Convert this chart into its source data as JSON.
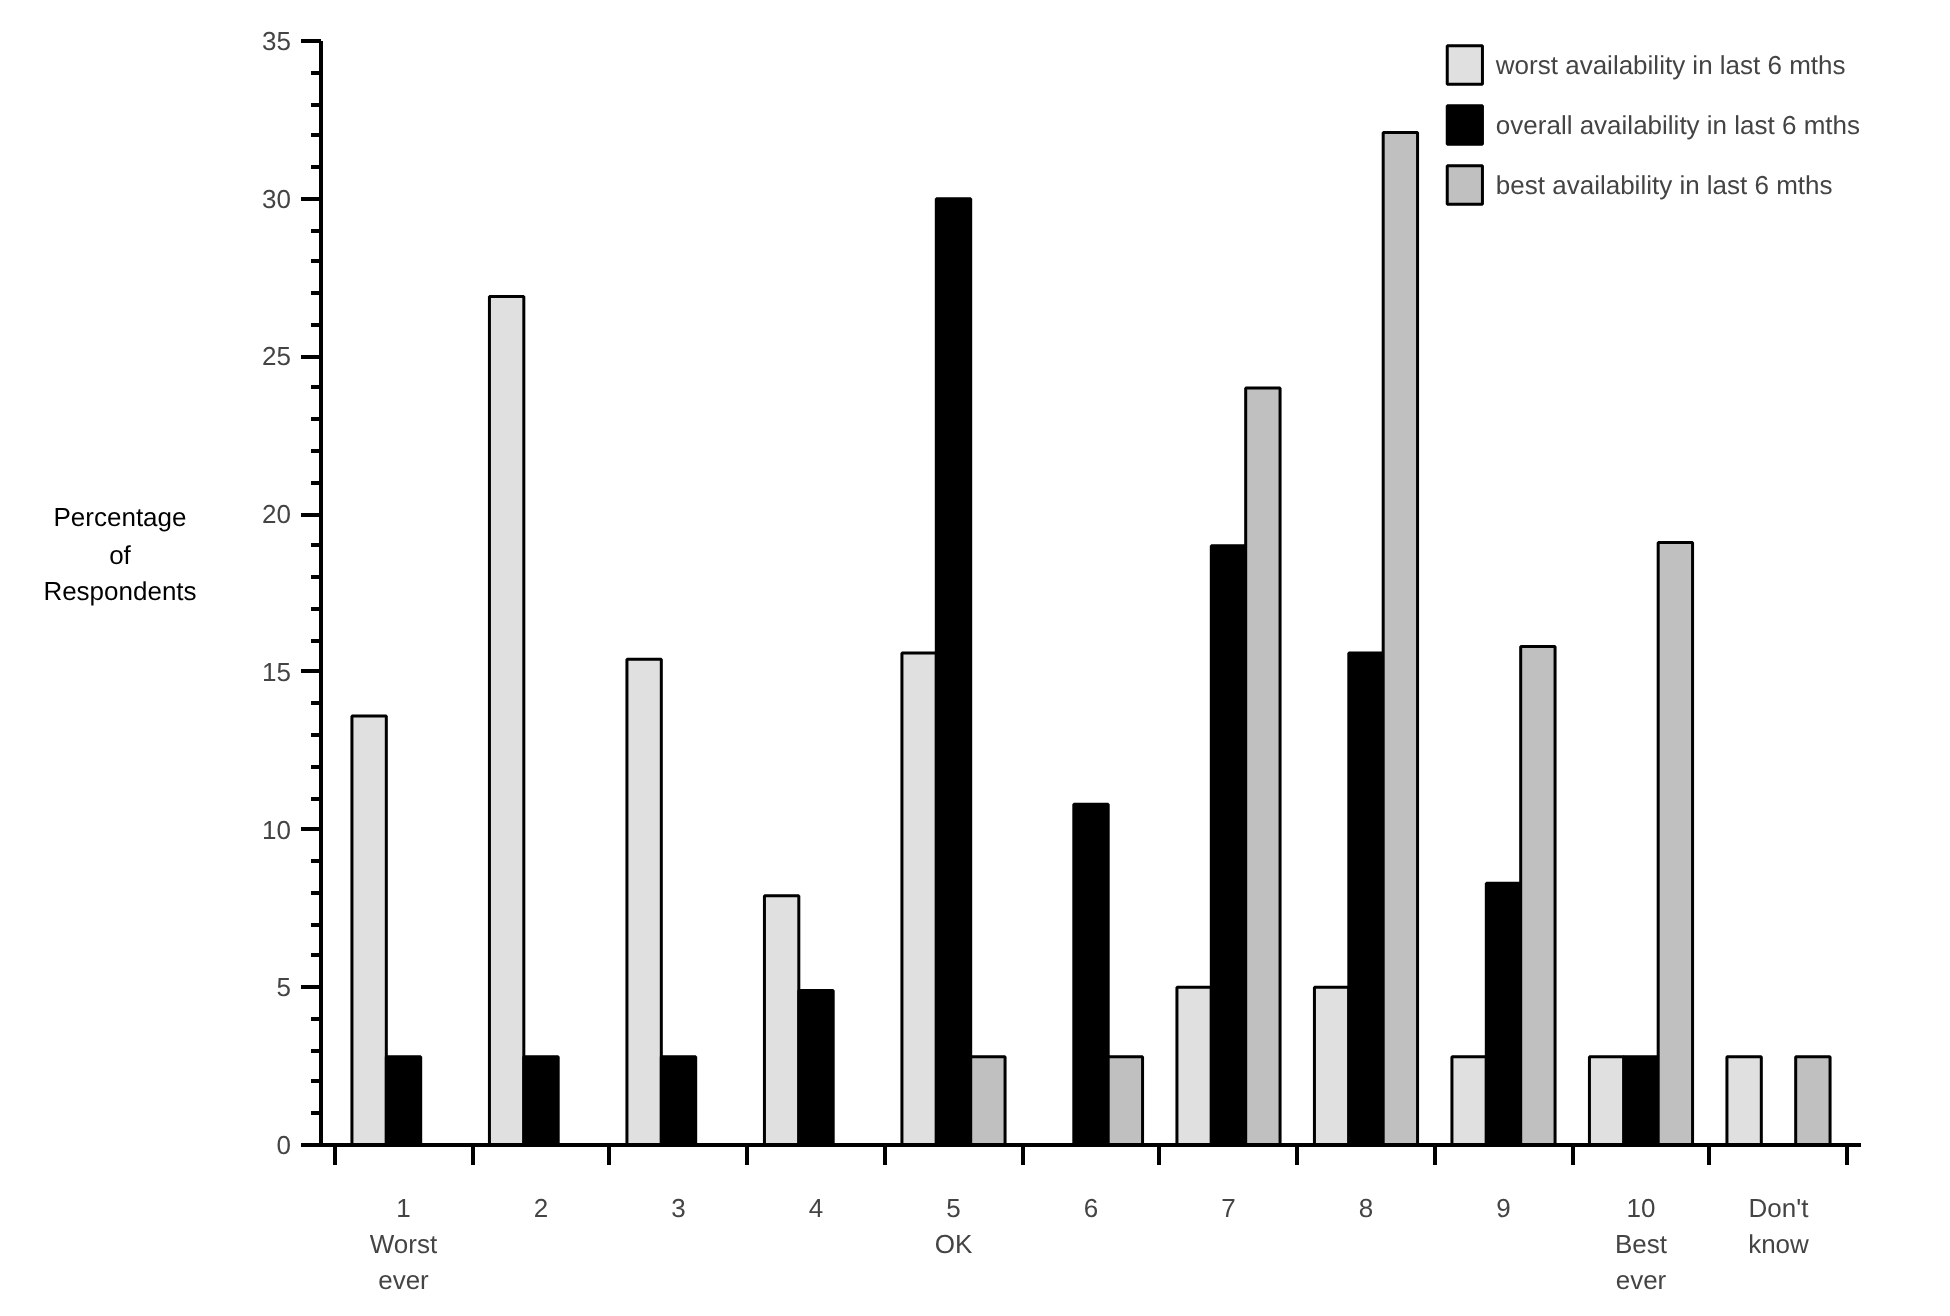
{
  "chart_data": {
    "type": "bar",
    "ylabel": "Percentage\nof\nRespondents",
    "categories": [
      "1\nWorst\never",
      "2",
      "3",
      "4",
      "5\nOK",
      "6",
      "7",
      "8",
      "9",
      "10\nBest\never",
      "Don't\nknow"
    ],
    "series": [
      {
        "name": "worst availability in last 6 mths",
        "color": "#e0e0e0",
        "values": [
          13.6,
          26.9,
          15.4,
          7.9,
          15.6,
          null,
          5.0,
          5.0,
          2.8,
          2.8,
          2.8
        ]
      },
      {
        "name": "overall availability in last 6 mths",
        "color": "#000000",
        "values": [
          2.8,
          2.8,
          2.8,
          4.9,
          30.0,
          10.8,
          19.0,
          15.6,
          8.3,
          2.8,
          null
        ]
      },
      {
        "name": "best availability in last 6 mths",
        "color": "#c0c0c0",
        "values": [
          null,
          null,
          null,
          null,
          2.8,
          2.8,
          24.0,
          32.1,
          15.8,
          19.1,
          2.8
        ]
      }
    ],
    "ylim": [
      0,
      35
    ],
    "yticks": [
      0,
      5,
      10,
      15,
      20,
      25,
      30,
      35
    ],
    "grid": false,
    "legend": "top right"
  }
}
